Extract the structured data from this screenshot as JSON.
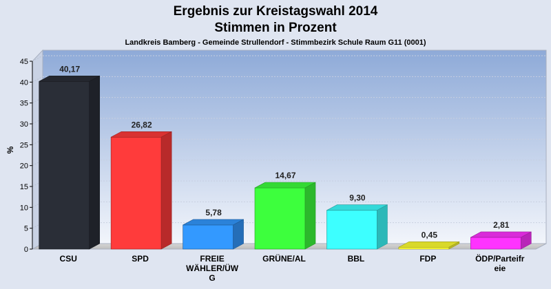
{
  "chart_data": {
    "type": "bar",
    "title": "Ergebnis zur Kreistagswahl 2014",
    "title_line2": "Stimmen in Prozent",
    "subtitle": "Landkreis Bamberg - Gemeinde Strullendorf - Stimmbezirk Schule Raum G11 (0001)",
    "ylabel": "%",
    "xlabel": "",
    "ylim": [
      0,
      45
    ],
    "yticks": [
      0,
      5,
      10,
      15,
      20,
      25,
      30,
      35,
      40,
      45
    ],
    "grid": true,
    "categories": [
      [
        "CSU"
      ],
      [
        "SPD"
      ],
      [
        "FREIE",
        "WÄHLER/ÜW",
        "G"
      ],
      [
        "GRÜNE/AL"
      ],
      [
        "BBL"
      ],
      [
        "FDP"
      ],
      [
        "ÖDP/Parteifr",
        "eie"
      ]
    ],
    "values": [
      40.17,
      26.82,
      5.78,
      14.67,
      9.3,
      0.45,
      2.81
    ],
    "value_labels": [
      "40,17",
      "26,82",
      "5,78",
      "14,67",
      "9,30",
      "0,45",
      "2,81"
    ],
    "colors": [
      "#2a2e37",
      "#ff3b3b",
      "#3399ff",
      "#3dff3d",
      "#3dffff",
      "#ffff33",
      "#ff33ff"
    ]
  }
}
